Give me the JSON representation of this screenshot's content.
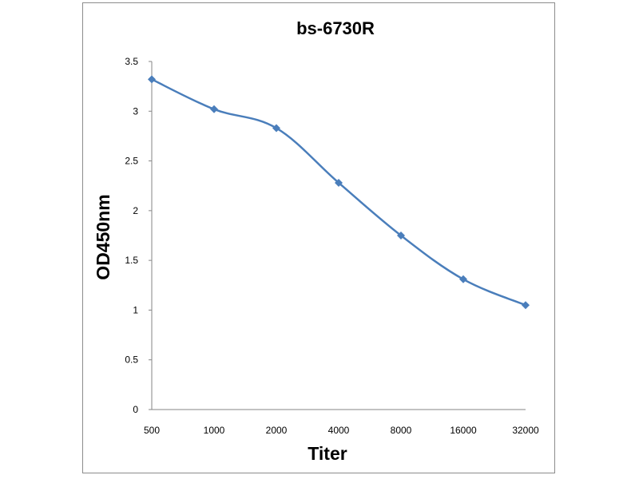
{
  "chart_data": {
    "type": "line",
    "title": "bs-6730R",
    "xlabel": "Titer",
    "ylabel": "OD450nm",
    "categories": [
      "500",
      "1000",
      "2000",
      "4000",
      "8000",
      "16000",
      "32000"
    ],
    "series": [
      {
        "values": [
          3.32,
          3.02,
          2.83,
          2.28,
          1.75,
          1.31,
          1.05
        ],
        "color": "#4a7ebb",
        "marker": "diamond",
        "smooth": true
      }
    ],
    "ylim": [
      0,
      3.5
    ],
    "yticks": [
      "0",
      "0.5",
      "1",
      "1.5",
      "2",
      "2.5",
      "3",
      "3.5"
    ],
    "grid": false,
    "legend": "none"
  }
}
